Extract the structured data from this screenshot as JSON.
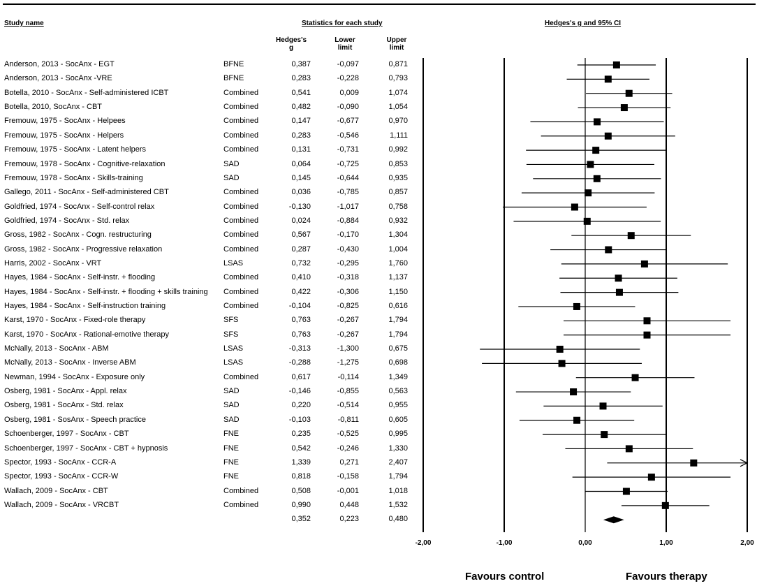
{
  "headers": {
    "study_name": "Study name",
    "statistics": "Statistics for each study",
    "forest": "Hedges's g and 95% CI",
    "col_g": "Hedges's g",
    "col_lower": "Lower limit",
    "col_upper": "Upper limit"
  },
  "favours": {
    "left": "Favours control",
    "right": "Favours therapy"
  },
  "chart_data": {
    "type": "forest",
    "title": "Hedges's g and 95% CI",
    "xlim": [
      -2,
      2
    ],
    "xticks": [
      -2,
      -1,
      0,
      1,
      2
    ],
    "xtick_labels": [
      "-2,00",
      "-1,00",
      "0,00",
      "1,00",
      "2,00"
    ],
    "studies": [
      {
        "name": "Anderson, 2013 - SocAnx - EGT",
        "measure": "BFNE",
        "g": 0.387,
        "lower": -0.097,
        "upper": 0.871,
        "g_label": "0,387",
        "lower_label": "-0,097",
        "upper_label": "0,871"
      },
      {
        "name": "Anderson, 2013 - SocAnx -VRE",
        "measure": "BFNE",
        "g": 0.283,
        "lower": -0.228,
        "upper": 0.793,
        "g_label": "0,283",
        "lower_label": "-0,228",
        "upper_label": "0,793"
      },
      {
        "name": "Botella, 2010 - SocAnx - Self-administered ICBT",
        "measure": "Combined",
        "g": 0.541,
        "lower": 0.009,
        "upper": 1.074,
        "g_label": "0,541",
        "lower_label": "0,009",
        "upper_label": "1,074"
      },
      {
        "name": "Botella, 2010, SocAnx - CBT",
        "measure": "Combined",
        "g": 0.482,
        "lower": -0.09,
        "upper": 1.054,
        "g_label": "0,482",
        "lower_label": "-0,090",
        "upper_label": "1,054"
      },
      {
        "name": "Fremouw, 1975 - SocAnx - Helpees",
        "measure": "Combined",
        "g": 0.147,
        "lower": -0.677,
        "upper": 0.97,
        "g_label": "0,147",
        "lower_label": "-0,677",
        "upper_label": "0,970"
      },
      {
        "name": "Fremouw, 1975 - SocAnx - Helpers",
        "measure": "Combined",
        "g": 0.283,
        "lower": -0.546,
        "upper": 1.111,
        "g_label": "0,283",
        "lower_label": "-0,546",
        "upper_label": "1,111"
      },
      {
        "name": "Fremouw, 1975 - SocAnx - Latent helpers",
        "measure": "Combined",
        "g": 0.131,
        "lower": -0.731,
        "upper": 0.992,
        "g_label": "0,131",
        "lower_label": "-0,731",
        "upper_label": "0,992"
      },
      {
        "name": "Fremouw, 1978 - SocAnx - Cognitive-relaxation",
        "measure": "SAD",
        "g": 0.064,
        "lower": -0.725,
        "upper": 0.853,
        "g_label": "0,064",
        "lower_label": "-0,725",
        "upper_label": "0,853"
      },
      {
        "name": "Fremouw, 1978 - SocAnx - Skills-training",
        "measure": "SAD",
        "g": 0.145,
        "lower": -0.644,
        "upper": 0.935,
        "g_label": "0,145",
        "lower_label": "-0,644",
        "upper_label": "0,935"
      },
      {
        "name": "Gallego, 2011 - SocAnx - Self-administered CBT",
        "measure": "Combined",
        "g": 0.036,
        "lower": -0.785,
        "upper": 0.857,
        "g_label": "0,036",
        "lower_label": "-0,785",
        "upper_label": "0,857"
      },
      {
        "name": "Goldfried, 1974 - SocAnx - Self-control relax",
        "measure": "Combined",
        "g": -0.13,
        "lower": -1.017,
        "upper": 0.758,
        "g_label": "-0,130",
        "lower_label": "-1,017",
        "upper_label": "0,758"
      },
      {
        "name": "Goldfried, 1974 - SocAnx - Std. relax",
        "measure": "Combined",
        "g": 0.024,
        "lower": -0.884,
        "upper": 0.932,
        "g_label": "0,024",
        "lower_label": "-0,884",
        "upper_label": "0,932"
      },
      {
        "name": "Gross, 1982 - SocAnx - Cogn. restructuring",
        "measure": "Combined",
        "g": 0.567,
        "lower": -0.17,
        "upper": 1.304,
        "g_label": "0,567",
        "lower_label": "-0,170",
        "upper_label": "1,304"
      },
      {
        "name": "Gross, 1982 - SocAnx - Progressive relaxation",
        "measure": "Combined",
        "g": 0.287,
        "lower": -0.43,
        "upper": 1.004,
        "g_label": "0,287",
        "lower_label": "-0,430",
        "upper_label": "1,004"
      },
      {
        "name": "Harris, 2002 - SocAnx - VRT",
        "measure": "LSAS",
        "g": 0.732,
        "lower": -0.295,
        "upper": 1.76,
        "g_label": "0,732",
        "lower_label": "-0,295",
        "upper_label": "1,760"
      },
      {
        "name": "Hayes, 1984 - SocAnx - Self-instr. + flooding",
        "measure": "Combined",
        "g": 0.41,
        "lower": -0.318,
        "upper": 1.137,
        "g_label": "0,410",
        "lower_label": "-0,318",
        "upper_label": "1,137"
      },
      {
        "name": "Hayes, 1984 - SocAnx - Self-instr. + flooding + skills training",
        "measure": "Combined",
        "g": 0.422,
        "lower": -0.306,
        "upper": 1.15,
        "g_label": "0,422",
        "lower_label": "-0,306",
        "upper_label": "1,150"
      },
      {
        "name": "Hayes, 1984 - SocAnx - Self-instruction training",
        "measure": "Combined",
        "g": -0.104,
        "lower": -0.825,
        "upper": 0.616,
        "g_label": "-0,104",
        "lower_label": "-0,825",
        "upper_label": "0,616"
      },
      {
        "name": "Karst, 1970 - SocAnx - Fixed-role therapy",
        "measure": "SFS",
        "g": 0.763,
        "lower": -0.267,
        "upper": 1.794,
        "g_label": "0,763",
        "lower_label": "-0,267",
        "upper_label": "1,794"
      },
      {
        "name": "Karst, 1970 - SocAnx - Rational-emotive therapy",
        "measure": "SFS",
        "g": 0.763,
        "lower": -0.267,
        "upper": 1.794,
        "g_label": "0,763",
        "lower_label": "-0,267",
        "upper_label": "1,794"
      },
      {
        "name": "McNally, 2013 - SocAnx - ABM",
        "measure": "LSAS",
        "g": -0.313,
        "lower": -1.3,
        "upper": 0.675,
        "g_label": "-0,313",
        "lower_label": "-1,300",
        "upper_label": "0,675"
      },
      {
        "name": "McNally, 2013 - SocAnx - Inverse ABM",
        "measure": "LSAS",
        "g": -0.288,
        "lower": -1.275,
        "upper": 0.698,
        "g_label": "-0,288",
        "lower_label": "-1,275",
        "upper_label": "0,698"
      },
      {
        "name": "Newman, 1994 - SocAnx - Exposure only",
        "measure": "Combined",
        "g": 0.617,
        "lower": -0.114,
        "upper": 1.349,
        "g_label": "0,617",
        "lower_label": "-0,114",
        "upper_label": "1,349"
      },
      {
        "name": "Osberg, 1981 - SocAnx - Appl. relax",
        "measure": "SAD",
        "g": -0.146,
        "lower": -0.855,
        "upper": 0.563,
        "g_label": "-0,146",
        "lower_label": "-0,855",
        "upper_label": "0,563"
      },
      {
        "name": "Osberg, 1981 - SocAnx - Std. relax",
        "measure": "SAD",
        "g": 0.22,
        "lower": -0.514,
        "upper": 0.955,
        "g_label": "0,220",
        "lower_label": "-0,514",
        "upper_label": "0,955"
      },
      {
        "name": "Osberg, 1981 - SosAnx - Speech practice",
        "measure": "SAD",
        "g": -0.103,
        "lower": -0.811,
        "upper": 0.605,
        "g_label": "-0,103",
        "lower_label": "-0,811",
        "upper_label": "0,605"
      },
      {
        "name": "Schoenberger, 1997 - SocAnx - CBT",
        "measure": "FNE",
        "g": 0.235,
        "lower": -0.525,
        "upper": 0.995,
        "g_label": "0,235",
        "lower_label": "-0,525",
        "upper_label": "0,995"
      },
      {
        "name": "Schoenberger, 1997 - SocAnx - CBT + hypnosis",
        "measure": "FNE",
        "g": 0.542,
        "lower": -0.246,
        "upper": 1.33,
        "g_label": "0,542",
        "lower_label": "-0,246",
        "upper_label": "1,330"
      },
      {
        "name": "Spector, 1993 - SocAnx - CCR-A",
        "measure": "FNE",
        "g": 1.339,
        "lower": 0.271,
        "upper": 2.407,
        "g_label": "1,339",
        "lower_label": "0,271",
        "upper_label": "2,407"
      },
      {
        "name": "Spector, 1993 - SocAnx - CCR-W",
        "measure": "FNE",
        "g": 0.818,
        "lower": -0.158,
        "upper": 1.794,
        "g_label": "0,818",
        "lower_label": "-0,158",
        "upper_label": "1,794"
      },
      {
        "name": "Wallach, 2009 - SocAnx - CBT",
        "measure": "Combined",
        "g": 0.508,
        "lower": -0.001,
        "upper": 1.018,
        "g_label": "0,508",
        "lower_label": "-0,001",
        "upper_label": "1,018"
      },
      {
        "name": "Wallach, 2009 - SocAnx - VRCBT",
        "measure": "Combined",
        "g": 0.99,
        "lower": 0.448,
        "upper": 1.532,
        "g_label": "0,990",
        "lower_label": "0,448",
        "upper_label": "1,532"
      }
    ],
    "summary": {
      "g": 0.352,
      "lower": 0.223,
      "upper": 0.48,
      "g_label": "0,352",
      "lower_label": "0,223",
      "upper_label": "0,480"
    }
  }
}
